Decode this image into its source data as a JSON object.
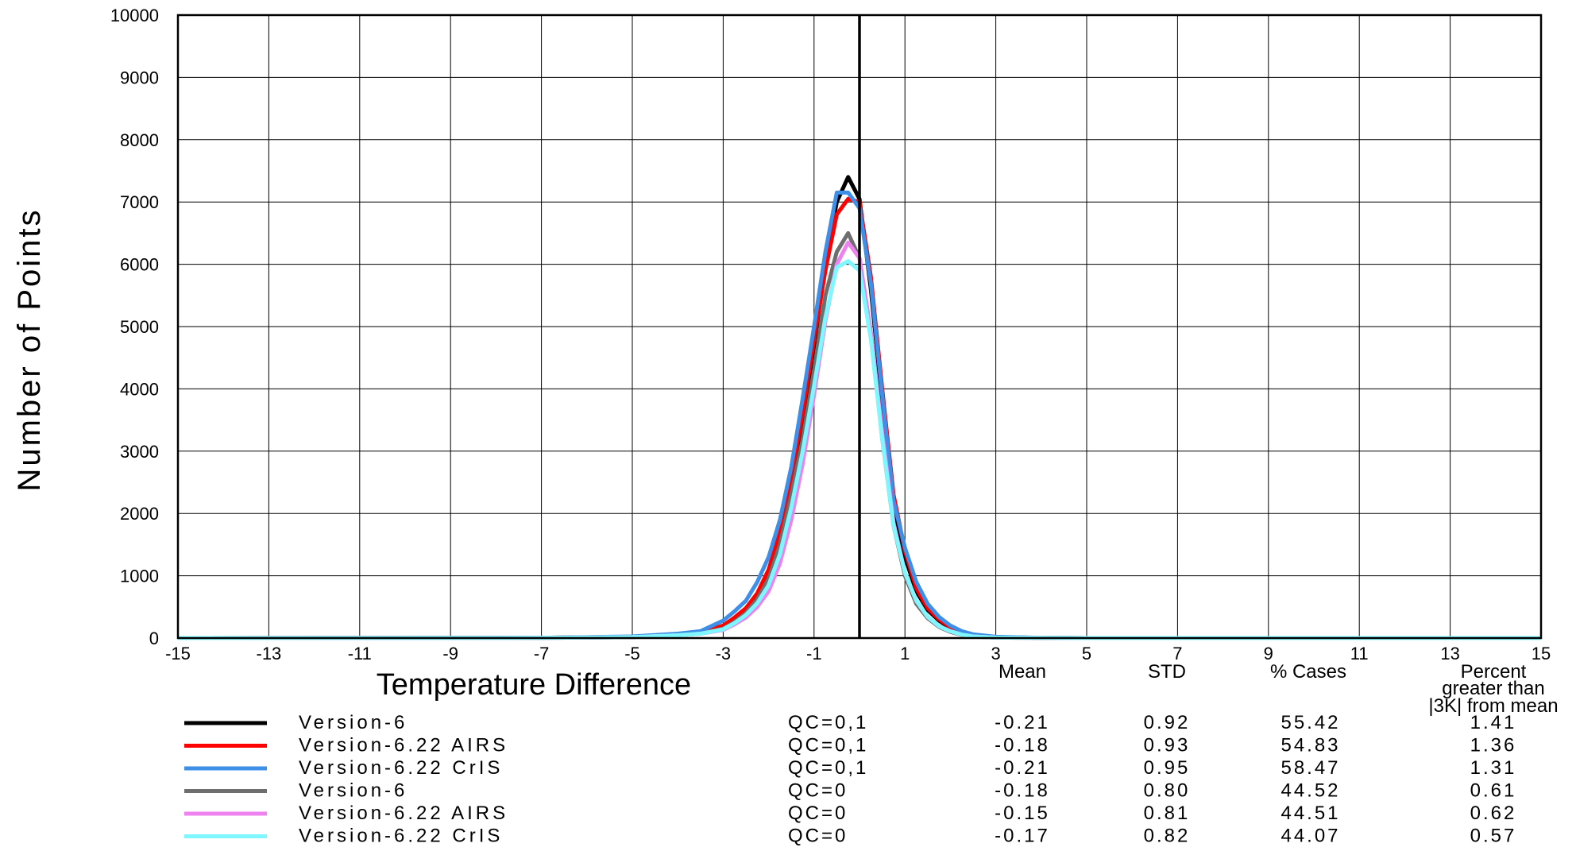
{
  "chart_data": {
    "type": "line",
    "title": "",
    "xlabel": "Temperature Difference",
    "ylabel": "Number of Points",
    "xlim": [
      -15,
      15
    ],
    "ylim": [
      0,
      10000
    ],
    "xticks": [
      "-15",
      "-13",
      "-11",
      "-9",
      "-7",
      "-5",
      "-3",
      "-1",
      "1",
      "3",
      "5",
      "7",
      "9",
      "11",
      "13",
      "15"
    ],
    "yticks": [
      "0",
      "1000",
      "2000",
      "3000",
      "4000",
      "5000",
      "6000",
      "7000",
      "8000",
      "9000",
      "10000"
    ],
    "grid": true,
    "reference_line_x": 0,
    "x": [
      -15,
      -7,
      -5,
      -4,
      -3.5,
      -3,
      -2.75,
      -2.5,
      -2.25,
      -2,
      -1.75,
      -1.5,
      -1.25,
      -1,
      -0.75,
      -0.5,
      -0.25,
      0,
      0.25,
      0.5,
      0.75,
      1,
      1.25,
      1.5,
      1.75,
      2,
      2.25,
      2.5,
      3,
      4,
      5,
      15
    ],
    "series": [
      {
        "name": "Version-6",
        "qc": "QC=0,1",
        "color": "#000000",
        "values": [
          0,
          5,
          20,
          60,
          90,
          180,
          300,
          450,
          700,
          1050,
          1650,
          2500,
          3500,
          4700,
          6000,
          7000,
          7400,
          7050,
          5600,
          3800,
          2100,
          1300,
          750,
          450,
          280,
          160,
          80,
          40,
          15,
          4,
          0,
          0
        ]
      },
      {
        "name": "Version-6.22 AIRS",
        "qc": "QC=0,1",
        "color": "#ff0000",
        "values": [
          0,
          5,
          20,
          60,
          90,
          200,
          330,
          480,
          720,
          1100,
          1700,
          2600,
          3600,
          4800,
          5900,
          6800,
          7050,
          7000,
          5800,
          4000,
          2300,
          1400,
          800,
          480,
          300,
          170,
          90,
          45,
          15,
          4,
          0,
          0
        ]
      },
      {
        "name": "Version-6.22 CrIS",
        "qc": "QC=0,1",
        "color": "#3d8fe8",
        "values": [
          0,
          5,
          25,
          70,
          110,
          280,
          430,
          600,
          900,
          1300,
          1900,
          2750,
          3850,
          5000,
          6200,
          7150,
          7150,
          6900,
          5700,
          3900,
          2200,
          1450,
          900,
          550,
          340,
          200,
          110,
          60,
          20,
          5,
          0,
          0
        ]
      },
      {
        "name": "Version-6",
        "qc": "QC=0",
        "color": "#6e6e6e",
        "values": [
          0,
          3,
          15,
          45,
          70,
          150,
          260,
          400,
          620,
          950,
          1500,
          2300,
          3200,
          4300,
          5500,
          6200,
          6500,
          6100,
          4900,
          3200,
          1800,
          1000,
          550,
          320,
          180,
          100,
          50,
          25,
          8,
          2,
          0,
          0
        ]
      },
      {
        "name": "Version-6.22 AIRS",
        "qc": "QC=0",
        "color": "#ee82ee",
        "values": [
          0,
          3,
          15,
          45,
          70,
          130,
          220,
          330,
          500,
          750,
          1200,
          1900,
          2800,
          3900,
          5100,
          6000,
          6350,
          6100,
          4900,
          3300,
          1850,
          1050,
          600,
          340,
          190,
          110,
          55,
          25,
          8,
          2,
          0,
          0
        ]
      },
      {
        "name": "Version-6.22 CrIS",
        "qc": "QC=0",
        "color": "#7ff7ff",
        "values": [
          0,
          3,
          15,
          45,
          70,
          140,
          240,
          370,
          560,
          850,
          1350,
          2100,
          3000,
          4050,
          5150,
          5950,
          6050,
          5900,
          4800,
          3200,
          1800,
          1050,
          600,
          340,
          190,
          110,
          55,
          25,
          8,
          2,
          0,
          0
        ]
      }
    ],
    "stats_table": {
      "headers": {
        "mean": "Mean",
        "std": "STD",
        "cases": "% Cases",
        "pct_line1": "Percent",
        "pct_line2": "greater than",
        "pct_line3": "|3K| from mean"
      },
      "rows": [
        {
          "name": "Version-6",
          "qc": "QC=0,1",
          "mean": "-0.21",
          "std": "0.92",
          "cases": "55.42",
          "pct": "1.41",
          "color": "#000000"
        },
        {
          "name": "Version-6.22 AIRS",
          "qc": "QC=0,1",
          "mean": "-0.18",
          "std": "0.93",
          "cases": "54.83",
          "pct": "1.36",
          "color": "#ff0000"
        },
        {
          "name": "Version-6.22 CrIS",
          "qc": "QC=0,1",
          "mean": "-0.21",
          "std": "0.95",
          "cases": "58.47",
          "pct": "1.31",
          "color": "#3d8fe8"
        },
        {
          "name": "Version-6",
          "qc": "QC=0",
          "mean": "-0.18",
          "std": "0.80",
          "cases": "44.52",
          "pct": "0.61",
          "color": "#6e6e6e"
        },
        {
          "name": "Version-6.22 AIRS",
          "qc": "QC=0",
          "mean": "-0.15",
          "std": "0.81",
          "cases": "44.51",
          "pct": "0.62",
          "color": "#ee82ee"
        },
        {
          "name": "Version-6.22 CrIS",
          "qc": "QC=0",
          "mean": "-0.17",
          "std": "0.82",
          "cases": "44.07",
          "pct": "0.57",
          "color": "#7ff7ff"
        }
      ]
    }
  }
}
